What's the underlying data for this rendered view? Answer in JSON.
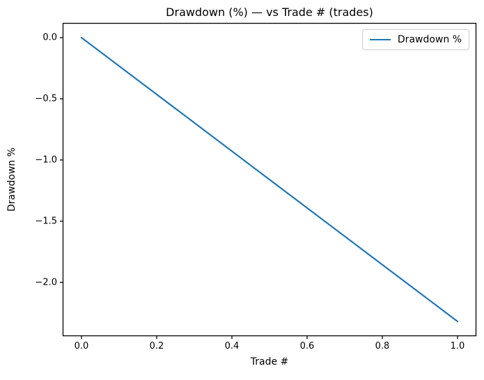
{
  "figure": {
    "background": "#ffffff",
    "axis_color": "#000000"
  },
  "chart_data": {
    "type": "line",
    "title": "Drawdown (%) — vs Trade # (trades)",
    "xlabel": "Trade #",
    "ylabel": "Drawdown %",
    "series": [
      {
        "name": "Drawdown %",
        "color": "#1f77b4",
        "x": [
          0.0,
          1.0
        ],
        "y": [
          0.0,
          -2.32
        ]
      }
    ],
    "xlim": [
      -0.05,
      1.05
    ],
    "ylim": [
      -2.44,
      0.12
    ],
    "xticks": [
      0.0,
      0.2,
      0.4,
      0.6,
      0.8,
      1.0
    ],
    "xtick_labels": [
      "0.0",
      "0.2",
      "0.4",
      "0.6",
      "0.8",
      "1.0"
    ],
    "yticks": [
      0.0,
      -0.5,
      -1.0,
      -1.5,
      -2.0
    ],
    "ytick_labels": [
      "0.0",
      "−0.5",
      "−1.0",
      "−1.5",
      "−2.0"
    ],
    "grid": false,
    "legend": {
      "position": "upper right",
      "entries": [
        {
          "label": "Drawdown %",
          "color": "#1f77b4"
        }
      ]
    }
  }
}
